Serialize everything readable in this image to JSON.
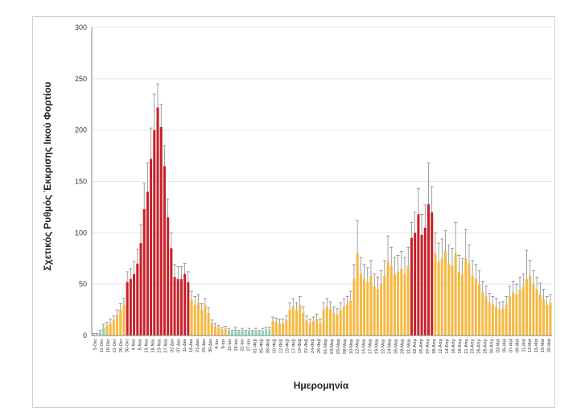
{
  "chart_data": {
    "type": "bar",
    "title": "",
    "xlabel": "Ημερομηνία",
    "ylabel": "Σχετικός Ρυθμός Έκκρισης Ιικού Φορτίου",
    "ylim": [
      0,
      300
    ],
    "yticks": [
      "0",
      "50",
      "100",
      "150",
      "200",
      "250",
      "300"
    ],
    "grid": true,
    "colors": {
      "green": "#8fd3b3",
      "orange": "#f5b942",
      "red": "#c8202a",
      "error_bar": "#777777",
      "grid": "#e6e6e6",
      "axis": "#888888"
    },
    "xtick_labels": [
      "5-Oκτ",
      "12-Oκτ",
      "16-Oκτ",
      "21-Oκτ",
      "26-Oκτ",
      "30-Oκτ",
      "4-Nοε",
      "9-Nοε",
      "13-Nοε",
      "18-Nοε",
      "23-Nοε",
      "27-Nοε",
      "02-Δεκ",
      "07-Δεκ",
      "11-Δεκ",
      "16-Δεκ",
      "21-Δεκ",
      "25-Δεκ",
      "30-Δεκ",
      "4-Ιαν",
      "8-Ιαν",
      "13-Ιαν",
      "18-Ιαν",
      "22-Ιαν",
      "27-Ιαν",
      "01-Φεβ",
      "05-Φεβ",
      "08-Φεβ",
      "10-Φεβ",
      "12-Φεβ",
      "15-Φεβ",
      "17-Φεβ",
      "19-Φεβ",
      "22-Φεβ",
      "24-Φεβ",
      "26-Φεβ",
      "01-Μαρ",
      "03-Μαρ",
      "05-Μαρ",
      "08-Μαρ",
      "10-Μαρ",
      "12-Μαρ",
      "15-Μαρ",
      "17-Μαρ",
      "19-Μαρ",
      "22-Μαρ",
      "24-Μαρ",
      "26-Μαρ",
      "29-Μαρ",
      "31-Μαρ",
      "02-Απρ",
      "05-Απρ",
      "07-Απρ",
      "09-Απρ",
      "12-Απρ",
      "14-Απρ",
      "16-Απρ",
      "19-Απρ",
      "21-Απρ",
      "23-Απρ",
      "26-Απρ",
      "28-Απρ",
      "30-Απρ",
      "03-Μαϊ",
      "05-Μαϊ",
      "07-Μαϊ",
      "09-Μαϊ",
      "11-Μαϊ",
      "13-Μαϊ",
      "16-Μαϊ",
      "18-Μαϊ",
      "20-Μαϊ"
    ],
    "series": [
      {
        "values": [
          1,
          1,
          3,
          8,
          10,
          12,
          15,
          20,
          25,
          30,
          52,
          55,
          60,
          70,
          90,
          123,
          140,
          172,
          200,
          222,
          203,
          165,
          115,
          85,
          57,
          55,
          55,
          60,
          52,
          35,
          30,
          32,
          25,
          30,
          22,
          12,
          9,
          8,
          6,
          7,
          5,
          4,
          6,
          4,
          5,
          4,
          5,
          4,
          5,
          4,
          5,
          6,
          6,
          14,
          13,
          12,
          12,
          15,
          25,
          28,
          25,
          30,
          22,
          15,
          12,
          14,
          16,
          12,
          25,
          28,
          26,
          22,
          20,
          25,
          28,
          30,
          34,
          55,
          80,
          60,
          55,
          52,
          58,
          48,
          45,
          50,
          58,
          72,
          68,
          60,
          62,
          65,
          60,
          68,
          95,
          100,
          118,
          98,
          105,
          128,
          120,
          80,
          72,
          75,
          82,
          70,
          68,
          80,
          62,
          60,
          75,
          70,
          58,
          55,
          50,
          42,
          38,
          32,
          30,
          28,
          25,
          26,
          30,
          38,
          42,
          40,
          45,
          48,
          55,
          58,
          50,
          45,
          40,
          35,
          30,
          32
        ],
        "errors": [
          1,
          1,
          2,
          3,
          3,
          4,
          4,
          5,
          6,
          6,
          10,
          10,
          12,
          14,
          18,
          25,
          28,
          30,
          35,
          23,
          22,
          20,
          18,
          15,
          12,
          12,
          12,
          10,
          10,
          8,
          8,
          8,
          6,
          6,
          5,
          3,
          3,
          2,
          2,
          2,
          2,
          1,
          2,
          1,
          2,
          1,
          2,
          1,
          2,
          1,
          2,
          2,
          2,
          4,
          4,
          4,
          4,
          4,
          7,
          8,
          7,
          8,
          6,
          4,
          4,
          4,
          5,
          4,
          7,
          8,
          7,
          6,
          6,
          7,
          8,
          8,
          9,
          14,
          32,
          16,
          14,
          14,
          15,
          12,
          12,
          13,
          15,
          25,
          18,
          16,
          16,
          17,
          16,
          18,
          15,
          20,
          25,
          20,
          22,
          40,
          25,
          20,
          18,
          19,
          20,
          18,
          17,
          30,
          16,
          15,
          28,
          18,
          15,
          14,
          13,
          11,
          10,
          9,
          8,
          8,
          7,
          7,
          8,
          10,
          11,
          10,
          12,
          12,
          28,
          15,
          13,
          12,
          11,
          10,
          8,
          8
        ],
        "colors": [
          "green",
          "green",
          "green",
          "green",
          "orange",
          "orange",
          "orange",
          "orange",
          "orange",
          "orange",
          "red",
          "red",
          "red",
          "red",
          "red",
          "red",
          "red",
          "red",
          "red",
          "red",
          "red",
          "red",
          "red",
          "red",
          "red",
          "red",
          "red",
          "red",
          "red",
          "orange",
          "orange",
          "orange",
          "orange",
          "orange",
          "orange",
          "orange",
          "orange",
          "orange",
          "orange",
          "orange",
          "green",
          "green",
          "green",
          "green",
          "green",
          "green",
          "green",
          "green",
          "green",
          "green",
          "green",
          "green",
          "green",
          "orange",
          "orange",
          "orange",
          "orange",
          "orange",
          "orange",
          "orange",
          "orange",
          "orange",
          "orange",
          "orange",
          "orange",
          "orange",
          "orange",
          "orange",
          "orange",
          "orange",
          "orange",
          "orange",
          "orange",
          "orange",
          "orange",
          "orange",
          "orange",
          "orange",
          "orange",
          "orange",
          "orange",
          "orange",
          "orange",
          "orange",
          "orange",
          "orange",
          "orange",
          "orange",
          "orange",
          "orange",
          "orange",
          "orange",
          "orange",
          "orange",
          "red",
          "red",
          "red",
          "red",
          "red",
          "red",
          "red",
          "orange",
          "orange",
          "orange",
          "orange",
          "orange",
          "orange",
          "orange",
          "orange",
          "orange",
          "orange",
          "orange",
          "orange",
          "orange",
          "orange",
          "orange",
          "orange",
          "orange",
          "orange",
          "orange",
          "orange",
          "orange",
          "orange",
          "orange",
          "orange",
          "orange",
          "orange",
          "orange",
          "orange",
          "orange",
          "orange",
          "orange",
          "orange",
          "orange",
          "orange",
          "orange"
        ]
      }
    ]
  }
}
